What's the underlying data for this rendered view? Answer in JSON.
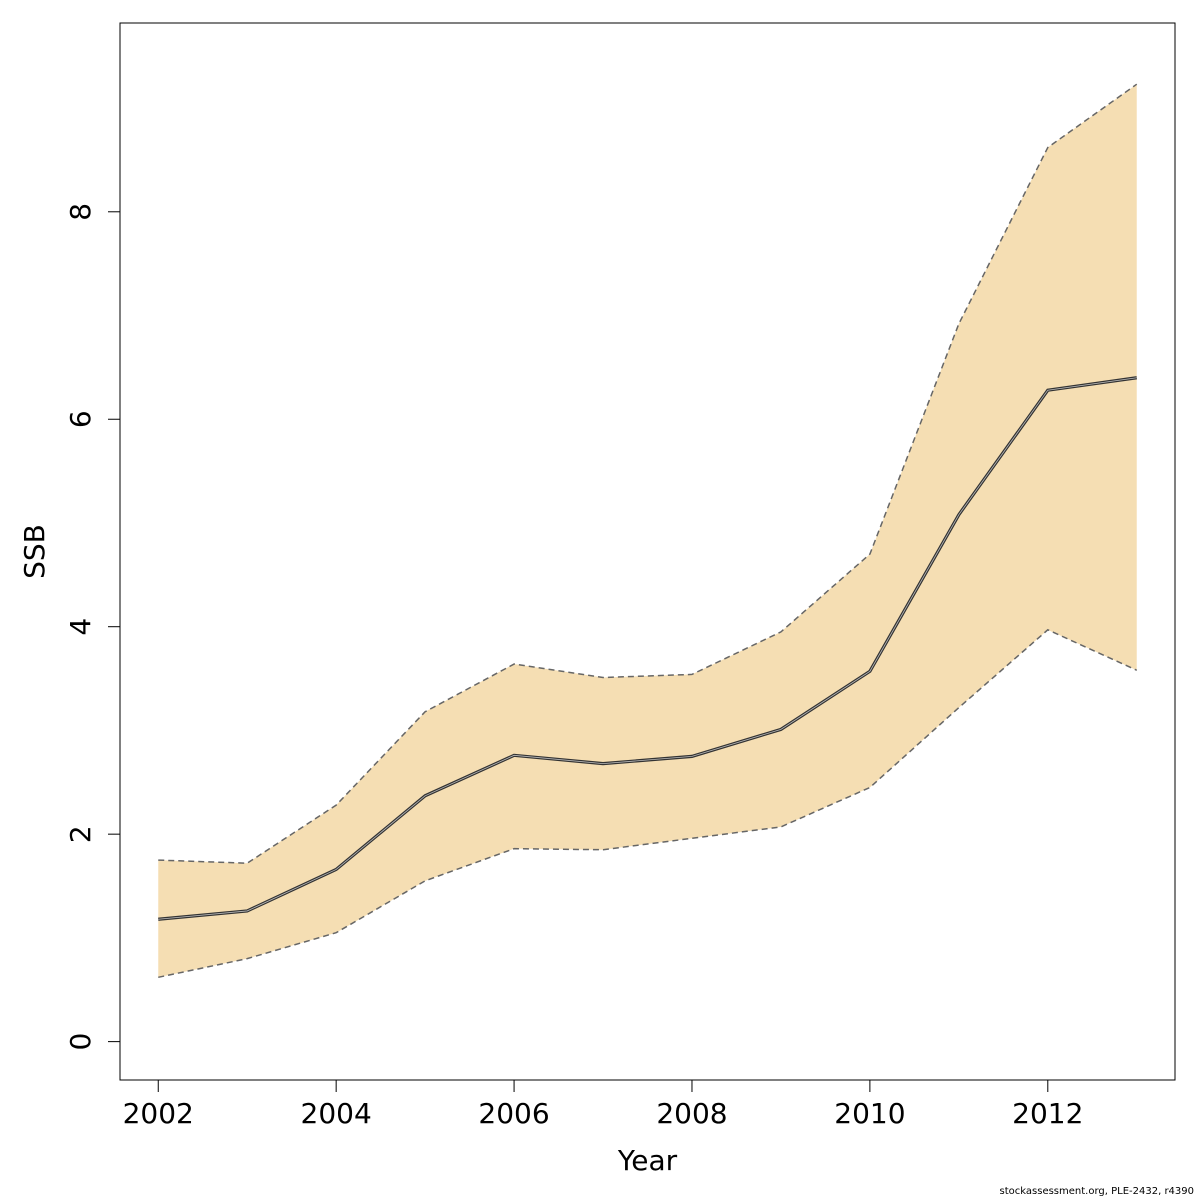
{
  "chart_data": {
    "type": "line",
    "xlabel": "Year",
    "ylabel": "SSB",
    "xlim": [
      2001.57,
      2013.43
    ],
    "ylim": [
      -0.37,
      9.82
    ],
    "x_ticks": [
      2002,
      2004,
      2006,
      2008,
      2010,
      2012
    ],
    "x_tick_labels": [
      "2002",
      "2004",
      "2006",
      "2008",
      "2010",
      "2012"
    ],
    "y_ticks": [
      0,
      2,
      4,
      6,
      8
    ],
    "y_tick_labels": [
      "0",
      "2",
      "4",
      "6",
      "8"
    ],
    "grid": false,
    "x": [
      2002,
      2003,
      2004,
      2005,
      2006,
      2007,
      2008,
      2009,
      2010,
      2011,
      2012,
      2013
    ],
    "series": [
      {
        "values": [
          1.18,
          1.26,
          1.66,
          2.37,
          2.76,
          2.68,
          2.75,
          3.01,
          3.57,
          5.08,
          6.28,
          6.4
        ]
      }
    ],
    "band": {
      "lower": [
        0.62,
        0.8,
        1.05,
        1.55,
        1.86,
        1.85,
        1.96,
        2.07,
        2.45,
        3.22,
        3.97,
        3.58
      ],
      "upper": [
        1.75,
        1.72,
        2.28,
        3.18,
        3.64,
        3.51,
        3.54,
        3.95,
        4.7,
        6.92,
        8.62,
        9.23
      ]
    },
    "colors": {
      "band": "#f5deb3",
      "line": "#333333",
      "bound_line": "#666666",
      "axis": "#000000"
    }
  },
  "footer": {
    "note": "stockassessment.org, PLE-2432, r4390"
  }
}
